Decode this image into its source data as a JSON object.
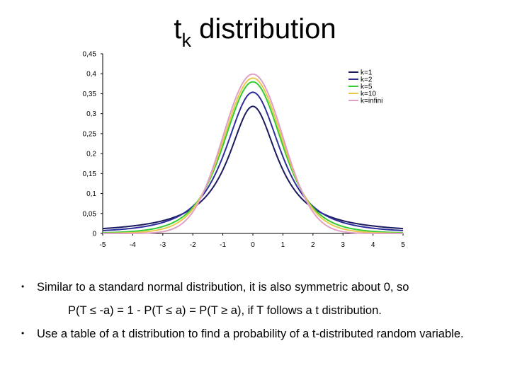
{
  "title": {
    "main": "t",
    "subscript": "k",
    "rest": " distribution"
  },
  "chart_data": {
    "type": "line",
    "title": "",
    "xlabel": "",
    "ylabel": "",
    "xlim": [
      -5,
      5
    ],
    "ylim": [
      0,
      0.45
    ],
    "x_ticks": [
      "-5",
      "-4",
      "-3",
      "-2",
      "-1",
      "0",
      "1",
      "2",
      "3",
      "4",
      "5"
    ],
    "y_ticks": [
      "0",
      "0,05",
      "0,1",
      "0,15",
      "0,2",
      "0,25",
      "0,3",
      "0,35",
      "0,4",
      "0,45"
    ],
    "grid": false,
    "legend_position": "top-right",
    "series": [
      {
        "name": "k=1",
        "df": 1,
        "color": "#1a1a5e",
        "peak": 0.318
      },
      {
        "name": "k=2",
        "df": 2,
        "color": "#2e2e9a",
        "peak": 0.354
      },
      {
        "name": "k=5",
        "df": 5,
        "color": "#33cc33",
        "peak": 0.38
      },
      {
        "name": "k=10",
        "df": 10,
        "color": "#e8c84a",
        "peak": 0.389
      },
      {
        "name": "k=infini",
        "df": "infinity",
        "color": "#e0a0c8",
        "peak": 0.399
      }
    ]
  },
  "bullets": [
    "Similar to a standard normal distribution, it is also symmetric about 0, so",
    "Use a table of a t distribution to find a probability of a t-distributed random variable."
  ],
  "formula": "P(T ≤ -a) = 1 - P(T ≤ a) = P(T ≥ a), if T follows a t distribution.",
  "bullet_symbol": "•"
}
